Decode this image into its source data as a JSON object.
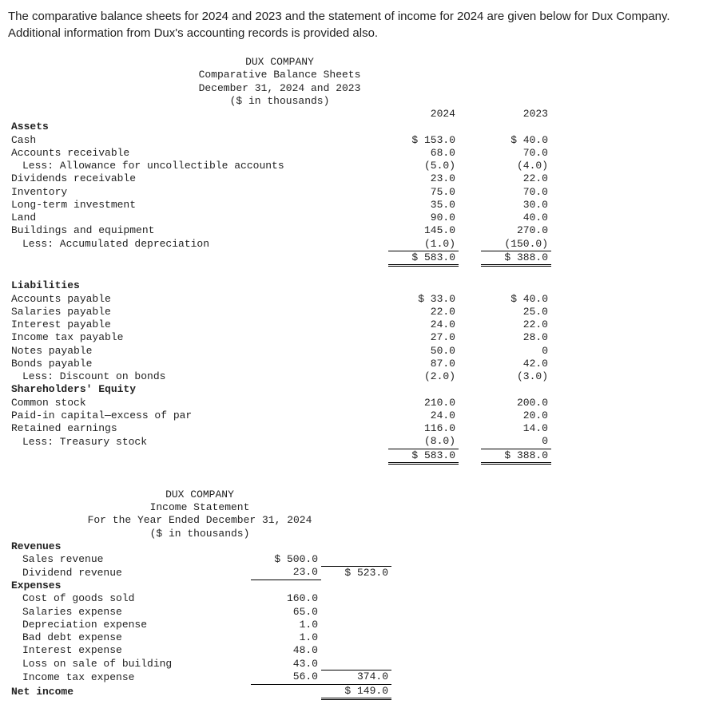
{
  "intro": "The comparative balance sheets for 2024 and 2023 and the statement of income for 2024 are given below for Dux Company. Additional information from Dux's accounting records is provided also.",
  "bs": {
    "company": "DUX COMPANY",
    "title": "Comparative Balance Sheets",
    "date": "December 31, 2024 and 2023",
    "units": "($ in thousands)",
    "col1": "2024",
    "col2": "2023",
    "assets_hdr": "Assets",
    "cash_l": "Cash",
    "cash_24": "$ 153.0",
    "cash_23": "$ 40.0",
    "ar_l": "Accounts receivable",
    "ar_24": "68.0",
    "ar_23": "70.0",
    "allow_l": "Less: Allowance for uncollectible accounts",
    "allow_24": "(5.0)",
    "allow_23": "(4.0)",
    "divr_l": "Dividends receivable",
    "divr_24": "23.0",
    "divr_23": "22.0",
    "inv_l": "Inventory",
    "inv_24": "75.0",
    "inv_23": "70.0",
    "lti_l": "Long-term investment",
    "lti_24": "35.0",
    "lti_23": "30.0",
    "land_l": "Land",
    "land_24": "90.0",
    "land_23": "40.0",
    "be_l": "Buildings and equipment",
    "be_24": "145.0",
    "be_23": "270.0",
    "ad_l": "Less: Accumulated depreciation",
    "ad_24": "(1.0)",
    "ad_23": "(150.0)",
    "ta_24": "$ 583.0",
    "ta_23": "$ 388.0",
    "liab_hdr": "Liabilities",
    "ap_l": "Accounts payable",
    "ap_24": "$ 33.0",
    "ap_23": "$ 40.0",
    "sp_l": "Salaries payable",
    "sp_24": "22.0",
    "sp_23": "25.0",
    "ip_l": "Interest payable",
    "ip_24": "24.0",
    "ip_23": "22.0",
    "itp_l": "Income tax payable",
    "itp_24": "27.0",
    "itp_23": "28.0",
    "np_l": "Notes payable",
    "np_24": "50.0",
    "np_23": "0",
    "bp_l": "Bonds payable",
    "bp_24": "87.0",
    "bp_23": "42.0",
    "db_l": "Less: Discount on bonds",
    "db_24": "(2.0)",
    "db_23": "(3.0)",
    "se_hdr": "Shareholders' Equity",
    "cs_l": "Common stock",
    "cs_24": "210.0",
    "cs_23": "200.0",
    "pic_l": "Paid-in capital—excess of par",
    "pic_24": "24.0",
    "pic_23": "20.0",
    "re_l": "Retained earnings",
    "re_24": "116.0",
    "re_23": "14.0",
    "ts_l": "Less: Treasury stock",
    "ts_24": "(8.0)",
    "ts_23": "0",
    "tle_24": "$ 583.0",
    "tle_23": "$ 388.0"
  },
  "is": {
    "company": "DUX COMPANY",
    "title": "Income Statement",
    "date": "For the Year Ended December 31, 2024",
    "units": "($ in thousands)",
    "rev_hdr": "Revenues",
    "sr_l": "Sales revenue",
    "sr_v": "$ 500.0",
    "dr_l": "Dividend revenue",
    "dr_v": "23.0",
    "rev_tot": "$ 523.0",
    "exp_hdr": "Expenses",
    "cogs_l": "Cost of goods sold",
    "cogs_v": "160.0",
    "se_l": "Salaries expense",
    "se_v": "65.0",
    "de_l": "Depreciation expense",
    "de_v": "1.0",
    "bde_l": "Bad debt expense",
    "bde_v": "1.0",
    "ie_l": "Interest expense",
    "ie_v": "48.0",
    "loss_l": "Loss on sale of building",
    "loss_v": "43.0",
    "ite_l": "Income tax expense",
    "ite_v": "56.0",
    "exp_tot": "374.0",
    "ni_l": "Net income",
    "ni_v": "$ 149.0"
  }
}
